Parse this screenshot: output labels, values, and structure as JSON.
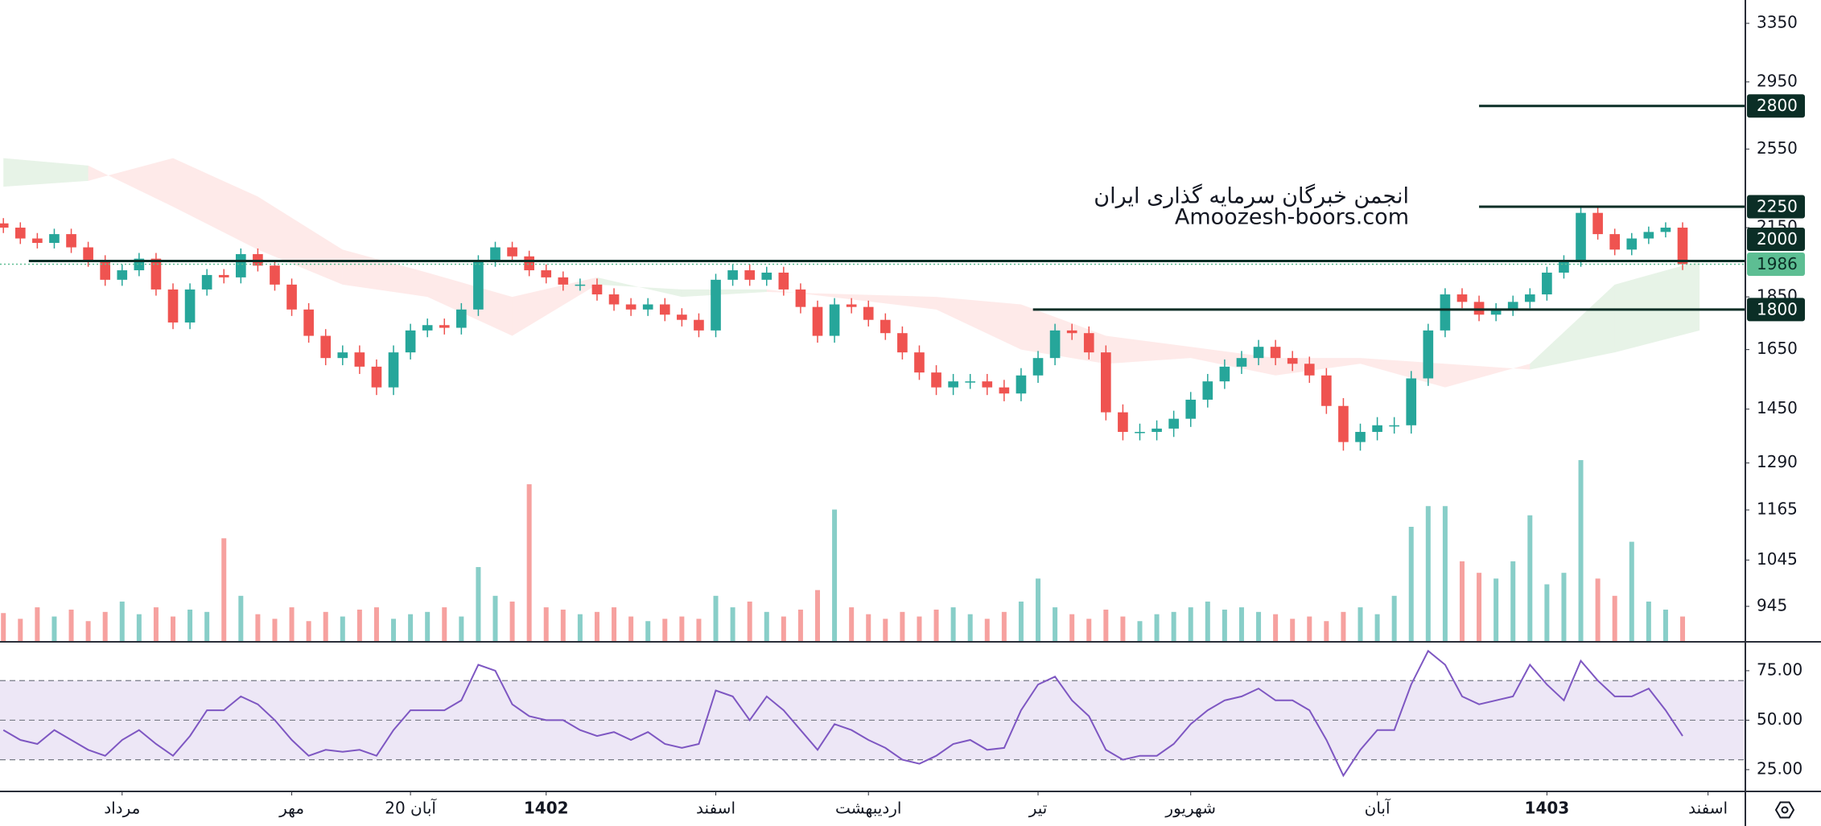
{
  "chart_data": {
    "type": "candlestick",
    "log_scale": true,
    "annotations": [
      "انجمن خبرگان سرمایه گذاری ایران",
      "Amoozesh-boors.com"
    ],
    "x": [
      0,
      1,
      2,
      3,
      4,
      5,
      6,
      7,
      8,
      9,
      10,
      11,
      12,
      13,
      14,
      15,
      16,
      17,
      18,
      19,
      20,
      21,
      22,
      23,
      24,
      25,
      26,
      27,
      28,
      29,
      30,
      31,
      32,
      33,
      34,
      35,
      36,
      37,
      38,
      39,
      40,
      41,
      42,
      43,
      44,
      45,
      46,
      47,
      48,
      49,
      50,
      51,
      52,
      53,
      54,
      55,
      56,
      57,
      58,
      59,
      60,
      61,
      62,
      63,
      64,
      65,
      66,
      67,
      68,
      69,
      70,
      71,
      72,
      73,
      74,
      75,
      76,
      77,
      78,
      79,
      80,
      81,
      82,
      83,
      84,
      85,
      86,
      87,
      88,
      89,
      90,
      91,
      92,
      93,
      94,
      95,
      96,
      97,
      98,
      99
    ],
    "xlim": [
      -0.2,
      102.7
    ],
    "xticks": [
      {
        "value": 7,
        "label": "مرداد"
      },
      {
        "value": 17,
        "label": "مهر"
      },
      {
        "value": 24,
        "label": "20 آبان"
      },
      {
        "value": 32,
        "label": "1402"
      },
      {
        "value": 42,
        "label": "اسفند"
      },
      {
        "value": 51,
        "label": "اردیبهشت"
      },
      {
        "value": 61,
        "label": "تیر"
      },
      {
        "value": 70,
        "label": "شهریور"
      },
      {
        "value": 81,
        "label": "آبان"
      },
      {
        "value": 91,
        "label": "1403"
      },
      {
        "value": 100.5,
        "label": "اسفند"
      }
    ],
    "open": [
      2170,
      2150,
      2100,
      2080,
      2120,
      2060,
      2000,
      1920,
      1960,
      2010,
      1880,
      1750,
      1880,
      1940,
      1930,
      2030,
      1980,
      1900,
      1800,
      1700,
      1620,
      1640,
      1590,
      1520,
      1640,
      1720,
      1740,
      1730,
      1800,
      2000,
      2060,
      2020,
      1960,
      1930,
      1900,
      1900,
      1860,
      1820,
      1800,
      1820,
      1780,
      1760,
      1720,
      1920,
      1960,
      1920,
      1950,
      1880,
      1810,
      1700,
      1820,
      1810,
      1760,
      1710,
      1640,
      1570,
      1520,
      1540,
      1540,
      1520,
      1500,
      1560,
      1620,
      1720,
      1710,
      1640,
      1440,
      1380,
      1380,
      1390,
      1420,
      1480,
      1540,
      1590,
      1620,
      1660,
      1620,
      1600,
      1560,
      1460,
      1350,
      1380,
      1400,
      1400,
      1550,
      1720,
      1860,
      1830,
      1780,
      1800,
      1830,
      1860,
      1950,
      2000,
      2220,
      2120,
      2050,
      2100,
      2130,
      2150
    ],
    "high": [
      2195,
      2175,
      2125,
      2145,
      2145,
      2085,
      2025,
      1985,
      2035,
      2035,
      1905,
      1905,
      1965,
      1965,
      2055,
      2055,
      2005,
      1925,
      1825,
      1725,
      1665,
      1665,
      1615,
      1665,
      1745,
      1765,
      1765,
      1825,
      2025,
      2085,
      2085,
      2045,
      1985,
      1955,
      1925,
      1925,
      1885,
      1845,
      1845,
      1845,
      1805,
      1785,
      1945,
      1985,
      1985,
      1975,
      1975,
      1905,
      1835,
      1845,
      1845,
      1835,
      1785,
      1735,
      1665,
      1595,
      1565,
      1565,
      1565,
      1545,
      1585,
      1645,
      1745,
      1745,
      1735,
      1665,
      1465,
      1405,
      1415,
      1445,
      1505,
      1565,
      1615,
      1645,
      1685,
      1685,
      1645,
      1625,
      1585,
      1485,
      1405,
      1425,
      1425,
      1575,
      1745,
      1885,
      1885,
      1855,
      1825,
      1855,
      1885,
      1975,
      2025,
      2245,
      2245,
      2145,
      2125,
      2155,
      2175,
      2175
    ],
    "low": [
      2125,
      2075,
      2055,
      2055,
      2035,
      1975,
      1895,
      1895,
      1935,
      1855,
      1725,
      1725,
      1855,
      1905,
      1905,
      1955,
      1875,
      1775,
      1675,
      1595,
      1595,
      1565,
      1495,
      1495,
      1615,
      1695,
      1705,
      1705,
      1775,
      1975,
      1995,
      1935,
      1905,
      1875,
      1875,
      1835,
      1795,
      1775,
      1775,
      1755,
      1735,
      1695,
      1695,
      1895,
      1895,
      1895,
      1855,
      1785,
      1675,
      1675,
      1785,
      1735,
      1685,
      1615,
      1545,
      1495,
      1495,
      1515,
      1495,
      1475,
      1475,
      1535,
      1595,
      1685,
      1615,
      1415,
      1355,
      1355,
      1355,
      1365,
      1395,
      1455,
      1515,
      1565,
      1595,
      1595,
      1575,
      1535,
      1435,
      1325,
      1325,
      1355,
      1375,
      1375,
      1525,
      1695,
      1805,
      1755,
      1755,
      1775,
      1805,
      1835,
      1925,
      1975,
      2095,
      2025,
      2025,
      2075,
      2105,
      1961
    ],
    "close": [
      2150,
      2100,
      2080,
      2120,
      2060,
      2000,
      1920,
      1960,
      2010,
      1880,
      1750,
      1880,
      1940,
      1930,
      2030,
      1980,
      1900,
      1800,
      1700,
      1620,
      1640,
      1590,
      1520,
      1640,
      1720,
      1740,
      1730,
      1800,
      2000,
      2060,
      2020,
      1960,
      1930,
      1900,
      1900,
      1860,
      1820,
      1800,
      1820,
      1780,
      1760,
      1720,
      1920,
      1960,
      1920,
      1950,
      1880,
      1810,
      1700,
      1820,
      1810,
      1760,
      1710,
      1640,
      1570,
      1520,
      1540,
      1540,
      1520,
      1500,
      1560,
      1620,
      1720,
      1710,
      1640,
      1440,
      1380,
      1380,
      1390,
      1420,
      1480,
      1540,
      1590,
      1620,
      1660,
      1620,
      1600,
      1560,
      1460,
      1350,
      1380,
      1400,
      1400,
      1550,
      1720,
      1860,
      1830,
      1780,
      1800,
      1830,
      1860,
      1950,
      2000,
      2220,
      2120,
      2050,
      2100,
      2130,
      2150,
      1986
    ],
    "up_color": "#26a69a",
    "down_color": "#ef5350",
    "ylim": [
      875,
      3524
    ],
    "yticks": [
      3350,
      2950,
      2550,
      2150,
      1850,
      1650,
      1450,
      1290,
      1165,
      1045,
      945
    ],
    "volume": [
      25,
      20,
      30,
      22,
      28,
      18,
      26,
      35,
      24,
      30,
      22,
      28,
      26,
      90,
      40,
      24,
      20,
      30,
      18,
      26,
      22,
      28,
      30,
      20,
      24,
      26,
      30,
      22,
      65,
      40,
      35,
      137,
      30,
      28,
      24,
      26,
      30,
      22,
      18,
      20,
      22,
      20,
      40,
      30,
      35,
      26,
      22,
      28,
      45,
      115,
      30,
      24,
      20,
      26,
      22,
      28,
      30,
      24,
      20,
      26,
      35,
      55,
      30,
      24,
      20,
      28,
      22,
      18,
      24,
      26,
      30,
      35,
      28,
      30,
      26,
      24,
      20,
      22,
      18,
      26,
      30,
      24,
      40,
      100,
      118,
      118,
      70,
      60,
      55,
      70,
      110,
      50,
      60,
      158,
      55,
      40,
      87,
      35,
      28,
      22
    ],
    "cloud": {
      "x": [
        0,
        5,
        10,
        15,
        20,
        25,
        30,
        35,
        40,
        45,
        50,
        55,
        60,
        65,
        70,
        75,
        80,
        85,
        90,
        95,
        100
      ],
      "span_a": [
        2500,
        2460,
        2250,
        2050,
        1900,
        1850,
        1700,
        1900,
        1880,
        1880,
        1840,
        1800,
        1650,
        1600,
        1620,
        1560,
        1600,
        1520,
        1600,
        1900,
        2000
      ],
      "span_b": [
        2350,
        2380,
        2500,
        2300,
        2050,
        1950,
        1850,
        1930,
        1850,
        1870,
        1860,
        1850,
        1820,
        1700,
        1660,
        1620,
        1620,
        1600,
        1580,
        1640,
        1720
      ]
    },
    "levels": [
      {
        "value": 2800,
        "x_start": 87
      },
      {
        "value": 2250,
        "x_start": 87
      },
      {
        "value": 2000,
        "x_start": 1.5
      },
      {
        "value": 1800,
        "x_start": 60.7
      }
    ],
    "level_color": "#0b2e26",
    "last_price": 1986,
    "last_price_color": "#5dbe93",
    "rsi": {
      "values": [
        45,
        40,
        38,
        45,
        40,
        35,
        32,
        40,
        45,
        38,
        32,
        42,
        55,
        55,
        62,
        58,
        50,
        40,
        32,
        35,
        34,
        35,
        32,
        45,
        55,
        55,
        55,
        60,
        78,
        75,
        58,
        52,
        50,
        50,
        45,
        42,
        44,
        40,
        44,
        38,
        36,
        38,
        65,
        62,
        50,
        62,
        55,
        45,
        35,
        48,
        45,
        40,
        36,
        30,
        28,
        32,
        38,
        40,
        35,
        36,
        55,
        68,
        72,
        60,
        52,
        35,
        30,
        32,
        32,
        38,
        48,
        55,
        60,
        62,
        66,
        60,
        60,
        55,
        40,
        22,
        35,
        45,
        45,
        68,
        85,
        78,
        62,
        58,
        60,
        62,
        78,
        68,
        60,
        80,
        70,
        62,
        62,
        66,
        55,
        42
      ],
      "color": "#7e57c2",
      "band_color": "#ede7f6",
      "ylim": [
        14,
        89.6
      ],
      "yticks": [
        {
          "value": 75,
          "label": "75.00"
        },
        {
          "value": 50,
          "label": "50.00"
        },
        {
          "value": 25,
          "label": "25.00"
        }
      ],
      "levels": [
        70,
        50,
        30
      ]
    }
  }
}
